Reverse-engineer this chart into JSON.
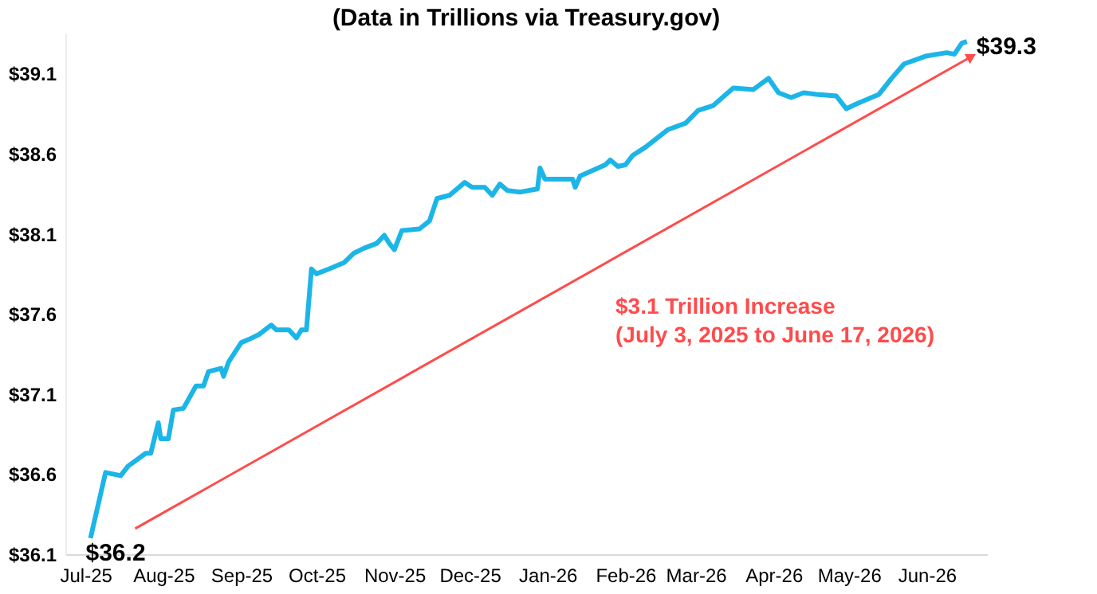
{
  "chart_data": {
    "type": "line",
    "title": "(Data in Trillions via Treasury.gov)",
    "x": [
      "2025-07-03",
      "2025-07-09",
      "2025-07-15",
      "2025-07-18",
      "2025-07-25",
      "2025-07-27",
      "2025-07-30",
      "2025-07-31",
      "2025-08-03",
      "2025-08-05",
      "2025-08-09",
      "2025-08-14",
      "2025-08-17",
      "2025-08-19",
      "2025-08-24",
      "2025-08-25",
      "2025-08-27",
      "2025-09-01",
      "2025-09-04",
      "2025-09-08",
      "2025-09-13",
      "2025-09-15",
      "2025-09-20",
      "2025-09-23",
      "2025-09-25",
      "2025-09-27",
      "2025-09-29",
      "2025-10-01",
      "2025-10-06",
      "2025-10-12",
      "2025-10-16",
      "2025-10-20",
      "2025-10-25",
      "2025-10-28",
      "2025-10-30",
      "2025-11-01",
      "2025-11-04",
      "2025-11-11",
      "2025-11-15",
      "2025-11-18",
      "2025-11-23",
      "2025-11-29",
      "2025-12-02",
      "2025-12-07",
      "2025-12-10",
      "2025-12-13",
      "2025-12-16",
      "2025-12-21",
      "2025-12-28",
      "2025-12-29",
      "2025-12-31",
      "2026-01-11",
      "2026-01-12",
      "2026-01-14",
      "2026-01-24",
      "2026-01-26",
      "2026-01-29",
      "2026-02-01",
      "2026-02-04",
      "2026-02-09",
      "2026-02-18",
      "2026-02-25",
      "2026-03-02",
      "2026-03-08",
      "2026-03-16",
      "2026-03-24",
      "2026-03-30",
      "2026-04-03",
      "2026-04-08",
      "2026-04-13",
      "2026-04-18",
      "2026-04-26",
      "2026-04-30",
      "2026-05-04",
      "2026-05-13",
      "2026-05-18",
      "2026-05-23",
      "2026-06-01",
      "2026-06-09",
      "2026-06-12",
      "2026-06-15",
      "2026-06-17"
    ],
    "series": [
      {
        "color": "#1cb5e8",
        "values": [
          36.2,
          36.61,
          36.59,
          36.65,
          36.73,
          36.73,
          36.92,
          36.82,
          36.82,
          37.0,
          37.01,
          37.15,
          37.15,
          37.24,
          37.26,
          37.21,
          37.3,
          37.42,
          37.44,
          37.47,
          37.53,
          37.5,
          37.5,
          37.45,
          37.5,
          37.5,
          37.88,
          37.85,
          37.88,
          37.92,
          37.98,
          38.01,
          38.04,
          38.09,
          38.04,
          38.0,
          38.12,
          38.13,
          38.18,
          38.32,
          38.34,
          38.42,
          38.39,
          38.39,
          38.34,
          38.41,
          38.37,
          38.36,
          38.38,
          38.51,
          38.44,
          38.44,
          38.39,
          38.46,
          38.53,
          38.56,
          38.52,
          38.53,
          38.59,
          38.64,
          38.75,
          38.79,
          38.87,
          38.9,
          39.01,
          39.0,
          39.07,
          38.98,
          38.95,
          38.98,
          38.97,
          38.96,
          38.88,
          38.91,
          38.97,
          39.07,
          39.16,
          39.21,
          39.23,
          39.22,
          39.29,
          39.3
        ]
      }
    ],
    "xlim": [
      "2025-06-23",
      "2026-06-25"
    ],
    "xticks": [
      {
        "value": "2025-07-01",
        "label": "Jul-25"
      },
      {
        "value": "2025-08-01",
        "label": "Aug-25"
      },
      {
        "value": "2025-09-01",
        "label": "Sep-25"
      },
      {
        "value": "2025-10-01",
        "label": "Oct-25"
      },
      {
        "value": "2025-11-01",
        "label": "Nov-25"
      },
      {
        "value": "2025-12-01",
        "label": "Dec-25"
      },
      {
        "value": "2026-01-01",
        "label": "Jan-26"
      },
      {
        "value": "2026-02-01",
        "label": "Feb-26"
      },
      {
        "value": "2026-03-01",
        "label": "Mar-26"
      },
      {
        "value": "2026-04-01",
        "label": "Apr-26"
      },
      {
        "value": "2026-05-01",
        "label": "May-26"
      },
      {
        "value": "2026-06-01",
        "label": "Jun-26"
      }
    ],
    "ylim": [
      36.1,
      39.35
    ],
    "yticks": [
      {
        "value": 36.1,
        "label": "$36.1"
      },
      {
        "value": 36.6,
        "label": "$36.6"
      },
      {
        "value": 37.1,
        "label": "$37.1"
      },
      {
        "value": 37.6,
        "label": "$37.6"
      },
      {
        "value": 38.1,
        "label": "$38.1"
      },
      {
        "value": 38.6,
        "label": "$38.6"
      },
      {
        "value": 39.1,
        "label": "$39.1"
      }
    ],
    "grid": false,
    "line_style": "solid",
    "marker": "none",
    "annotations": [
      {
        "text": "$36.2",
        "x": "2025-07-03",
        "y": 36.2
      },
      {
        "text": "$39.3",
        "x": "2026-06-17",
        "y": 39.3
      },
      "$3.1 Trillion Increase",
      "(July 3, 2025 to June 17, 2026)"
    ]
  }
}
